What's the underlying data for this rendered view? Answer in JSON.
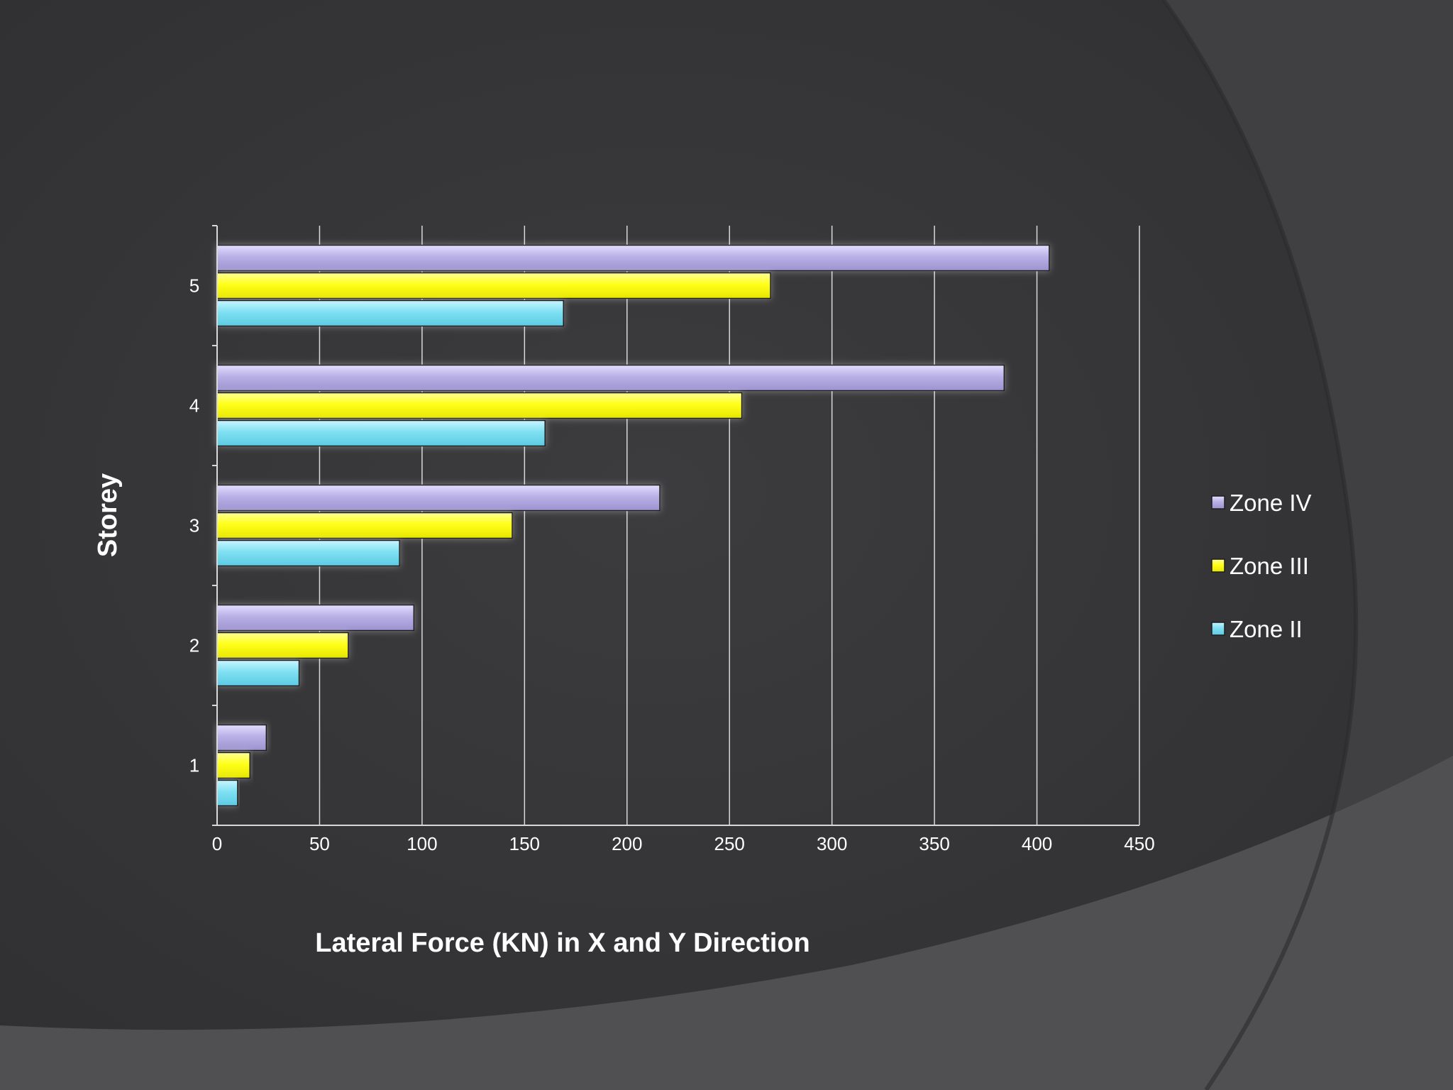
{
  "slide": {
    "background_color": "#3a3a3c",
    "swoosh_color": "#4f4f52"
  },
  "chart_data": {
    "type": "bar",
    "orientation": "horizontal",
    "title": "",
    "xlabel": "Lateral Force (KN) in X and Y Direction",
    "ylabel": "Storey",
    "xlim": [
      0,
      450
    ],
    "x_ticks": [
      0,
      50,
      100,
      150,
      200,
      250,
      300,
      350,
      400,
      450
    ],
    "categories": [
      "1",
      "2",
      "3",
      "4",
      "5"
    ],
    "grid": true,
    "legend_position": "right",
    "series": [
      {
        "name": "Zone IV",
        "color": "#b9b0e6",
        "values": [
          24,
          96,
          216,
          384,
          406
        ]
      },
      {
        "name": "Zone III",
        "color": "#ffff1a",
        "values": [
          16,
          64,
          144,
          256,
          270
        ]
      },
      {
        "name": "Zone II",
        "color": "#7fe0f2",
        "values": [
          10,
          40,
          89,
          160,
          169
        ]
      }
    ]
  }
}
